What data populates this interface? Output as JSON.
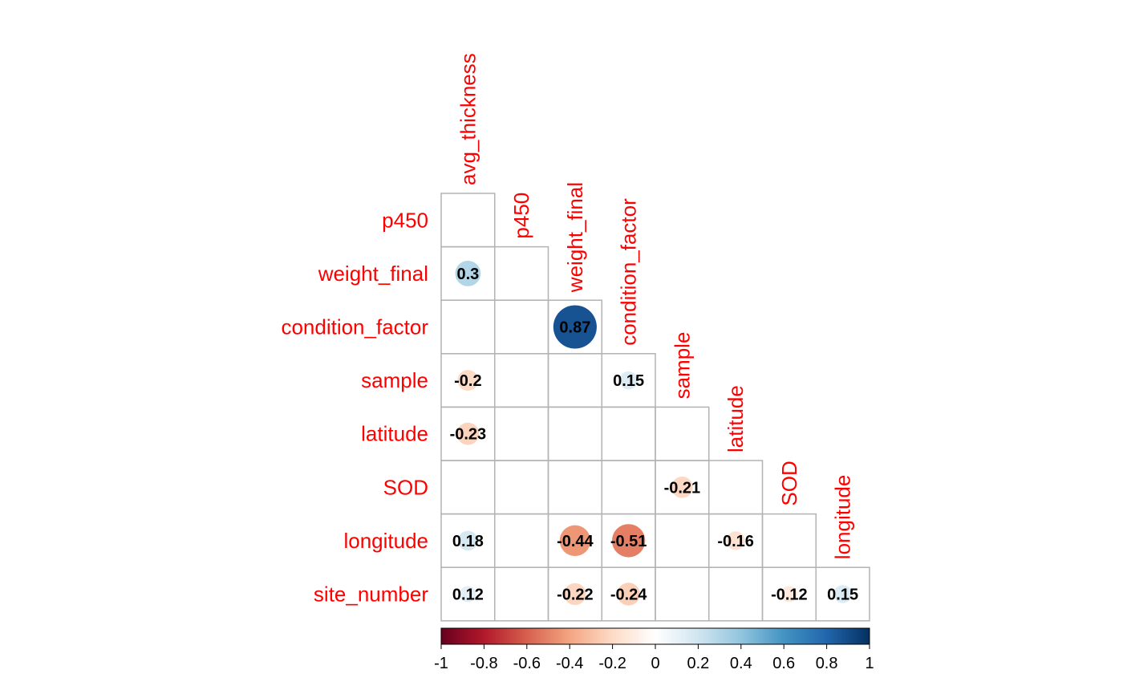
{
  "chart_data": {
    "type": "heatmap",
    "subtype": "correlation-matrix-lower-triangle",
    "method": "circle",
    "column_labels": [
      "avg_thickness",
      "p450",
      "weight_final",
      "condition_factor",
      "sample",
      "latitude",
      "SOD",
      "longitude"
    ],
    "row_labels": [
      "p450",
      "weight_final",
      "condition_factor",
      "sample",
      "latitude",
      "SOD",
      "longitude",
      "site_number"
    ],
    "values": [
      [
        null
      ],
      [
        0.3,
        null
      ],
      [
        null,
        null,
        0.87
      ],
      [
        -0.2,
        null,
        null,
        0.15
      ],
      [
        -0.23,
        null,
        null,
        null,
        null
      ],
      [
        null,
        null,
        null,
        null,
        -0.21,
        null
      ],
      [
        0.18,
        null,
        -0.44,
        -0.51,
        null,
        -0.16,
        null
      ],
      [
        0.12,
        null,
        -0.22,
        -0.24,
        null,
        null,
        -0.12,
        0.15
      ]
    ],
    "value_labels": [
      [
        null
      ],
      [
        "0.3",
        null
      ],
      [
        null,
        null,
        "0.87"
      ],
      [
        "-0.2",
        null,
        null,
        "0.15"
      ],
      [
        "-0.23",
        null,
        null,
        null,
        null
      ],
      [
        null,
        null,
        null,
        null,
        "-0.21",
        null
      ],
      [
        "0.18",
        null,
        "-0.44",
        "-0.51",
        null,
        "-0.16",
        null
      ],
      [
        "0.12",
        null,
        "-0.22",
        "-0.24",
        null,
        null,
        "-0.12",
        "0.15"
      ]
    ],
    "colorbar": {
      "range": [
        -1,
        1
      ],
      "tick_labels": [
        "-1",
        "-0.8",
        "-0.6",
        "-0.4",
        "-0.2",
        "0",
        "0.2",
        "0.4",
        "0.6",
        "0.8",
        "1"
      ],
      "ticks": [
        -1,
        -0.8,
        -0.6,
        -0.4,
        -0.2,
        0,
        0.2,
        0.4,
        0.6,
        0.8,
        1
      ],
      "colors": [
        "#67001f",
        "#b2182b",
        "#d6604d",
        "#f4a582",
        "#fddbc7",
        "#ffffff",
        "#d1e5f0",
        "#92c5de",
        "#4393c3",
        "#2166ac",
        "#053061"
      ]
    },
    "label_color": "#ff0000",
    "grid": true
  }
}
